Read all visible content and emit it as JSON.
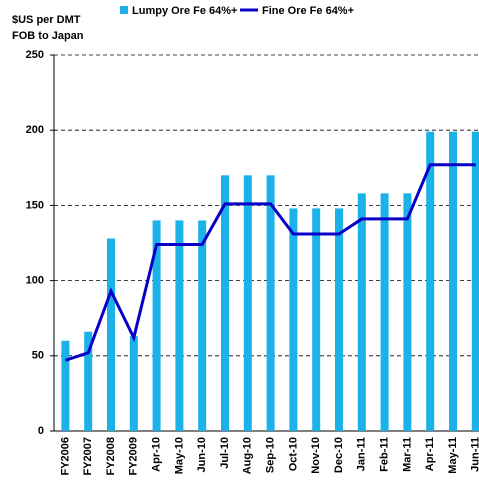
{
  "chart_data": {
    "type": "bar_line",
    "ylabel": [
      "$US per DMT",
      "FOB to Japan"
    ],
    "categories": [
      "FY2006",
      "FY2007",
      "FY2008",
      "FY2009",
      "Apr-10",
      "May-10",
      "Jun-10",
      "Jul-10",
      "Aug-10",
      "Sep-10",
      "Oct-10",
      "Nov-10",
      "Dec-10",
      "Jan-11",
      "Feb-11",
      "Mar-11",
      "Apr-11",
      "May-11",
      "Jun-11"
    ],
    "series": [
      {
        "name": "Lumpy Ore Fe 64%+",
        "color": "#1ab2e8",
        "kind": "bar",
        "values": [
          60,
          66,
          128,
          63,
          140,
          140,
          140,
          170,
          170,
          170,
          148,
          148,
          148,
          158,
          158,
          158,
          199,
          199,
          199
        ]
      },
      {
        "name": "Fine Ore Fe 64%+",
        "color": "#0a00c8",
        "kind": "line",
        "values": [
          47,
          52,
          93,
          62,
          124,
          124,
          124,
          151,
          151,
          151,
          131,
          131,
          131,
          141,
          141,
          141,
          177,
          177,
          177
        ]
      }
    ],
    "ylim": [
      0,
      250
    ],
    "yticks": [
      0,
      50,
      100,
      150,
      200,
      250
    ],
    "grid": true
  }
}
